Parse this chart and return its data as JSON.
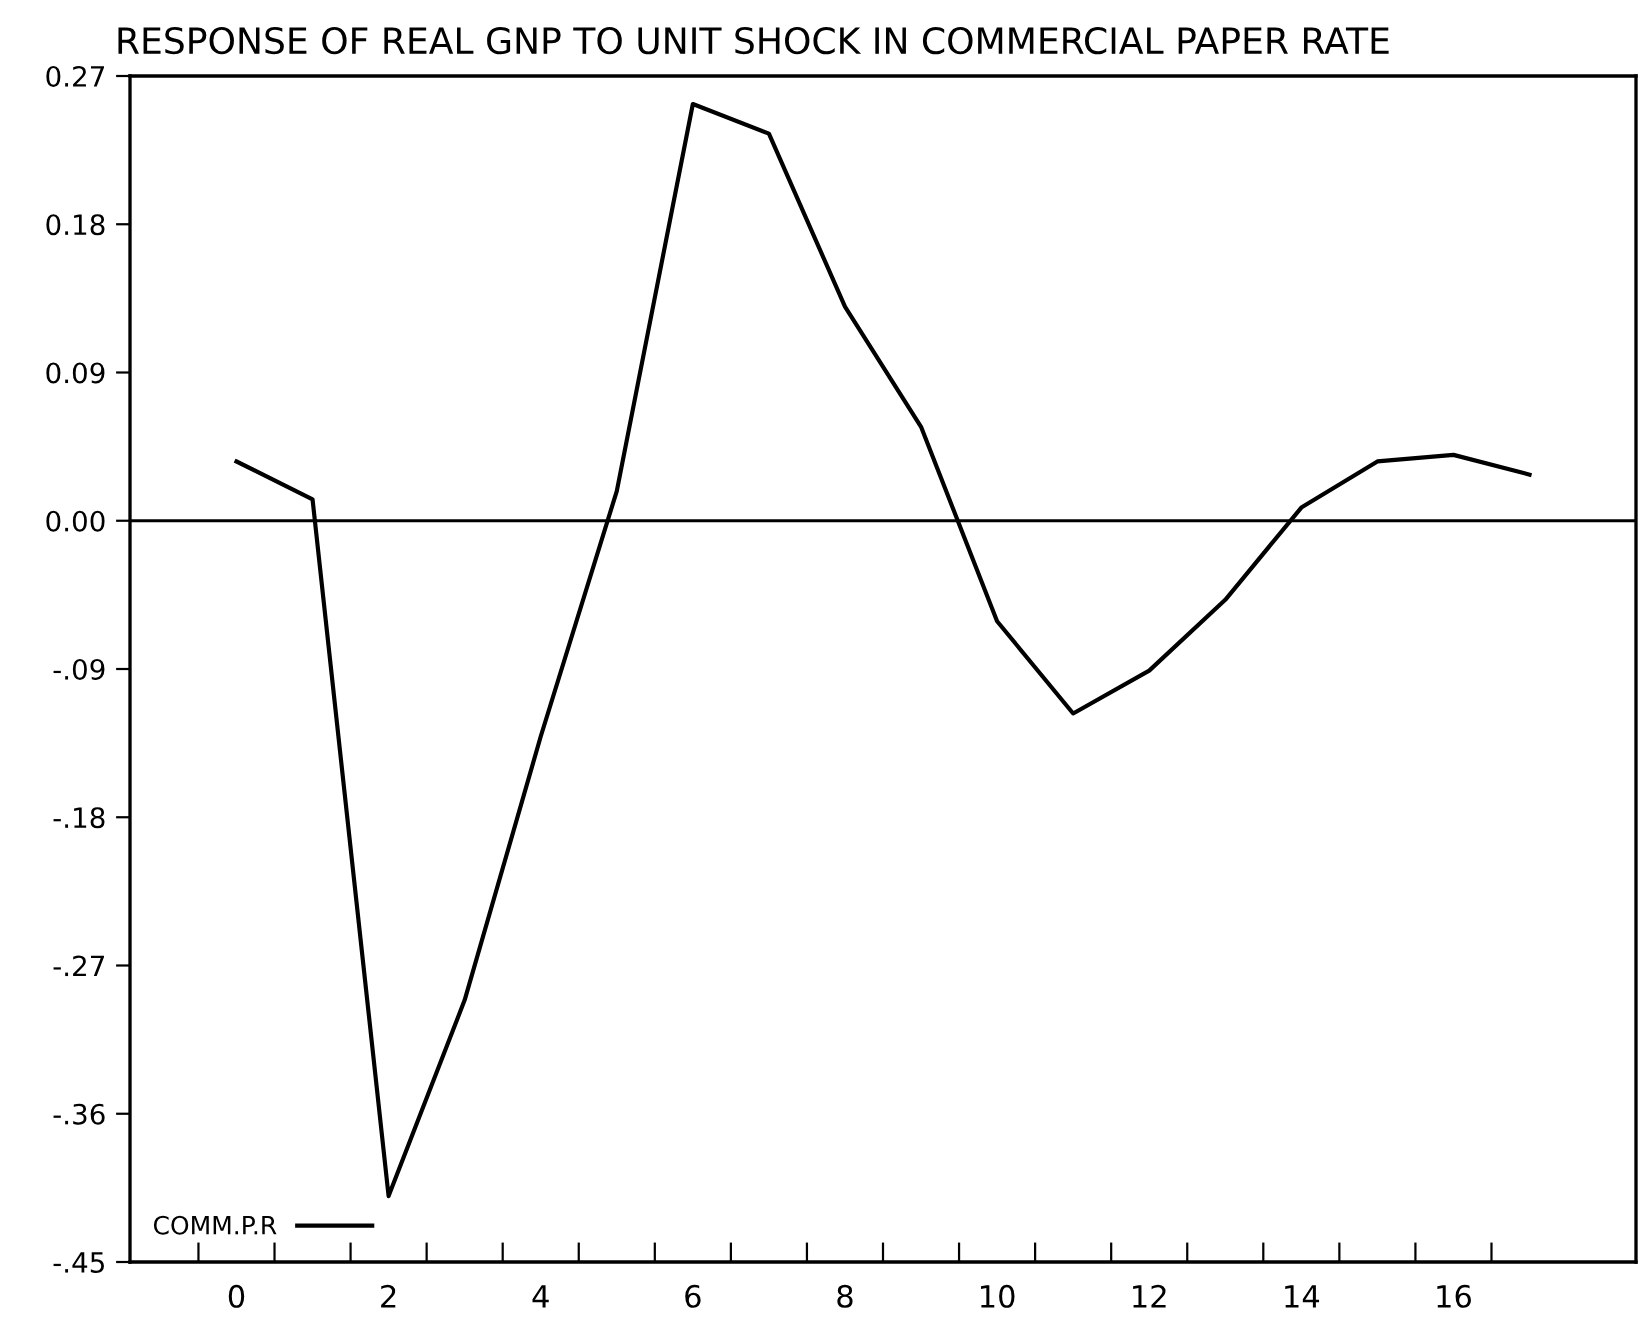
{
  "chart_data": {
    "type": "line",
    "title": "RESPONSE OF REAL GNP TO UNIT SHOCK IN COMMERCIAL PAPER RATE",
    "x": [
      0,
      1,
      2,
      3,
      4,
      5,
      6,
      7,
      8,
      9,
      10,
      11,
      12,
      13,
      14,
      15,
      16,
      17
    ],
    "series": [
      {
        "name": "COMM.P.R",
        "color": "#000000",
        "values": [
          0.036,
          0.013,
          -0.41,
          -0.291,
          -0.131,
          0.018,
          0.253,
          0.235,
          0.13,
          0.057,
          -0.061,
          -0.117,
          -0.091,
          -0.048,
          0.008,
          0.036,
          0.04,
          0.028
        ]
      }
    ],
    "xlim": [
      -1.4,
      18.4
    ],
    "xticks": [
      {
        "value": -0.5,
        "label": null
      },
      {
        "value": 0,
        "label": "0"
      },
      {
        "value": 0.5,
        "label": null
      },
      {
        "value": 1.5,
        "label": null
      },
      {
        "value": 2,
        "label": "2"
      },
      {
        "value": 2.5,
        "label": null
      },
      {
        "value": 3.5,
        "label": null
      },
      {
        "value": 4,
        "label": "4"
      },
      {
        "value": 4.5,
        "label": null
      },
      {
        "value": 5.5,
        "label": null
      },
      {
        "value": 6,
        "label": "6"
      },
      {
        "value": 6.5,
        "label": null
      },
      {
        "value": 7.5,
        "label": null
      },
      {
        "value": 8,
        "label": "8"
      },
      {
        "value": 8.5,
        "label": null
      },
      {
        "value": 9.5,
        "label": null
      },
      {
        "value": 10,
        "label": "10"
      },
      {
        "value": 10.5,
        "label": null
      },
      {
        "value": 11.5,
        "label": null
      },
      {
        "value": 12,
        "label": "12"
      },
      {
        "value": 12.5,
        "label": null
      },
      {
        "value": 13.5,
        "label": null
      },
      {
        "value": 14,
        "label": "14"
      },
      {
        "value": 14.5,
        "label": null
      },
      {
        "value": 15.5,
        "label": null
      },
      {
        "value": 16,
        "label": "16"
      },
      {
        "value": 16.5,
        "label": null
      }
    ],
    "ylim": [
      -0.45,
      0.27
    ],
    "yticks": [
      {
        "value": 0.27,
        "label": "0.27"
      },
      {
        "value": 0.18,
        "label": "0.18"
      },
      {
        "value": 0.09,
        "label": "0.09"
      },
      {
        "value": 0.0,
        "label": "0.00"
      },
      {
        "value": -0.09,
        "label": "-.09"
      },
      {
        "value": -0.18,
        "label": "-.18"
      },
      {
        "value": -0.27,
        "label": "-.27"
      },
      {
        "value": -0.36,
        "label": "-.36"
      },
      {
        "value": -0.45,
        "label": "-.45"
      }
    ],
    "ref_lines": [
      {
        "axis": "y",
        "value": 0,
        "color": "#000000"
      }
    ],
    "grid": false,
    "legend": "bottom left",
    "marker": "none",
    "line_style": "solid"
  }
}
